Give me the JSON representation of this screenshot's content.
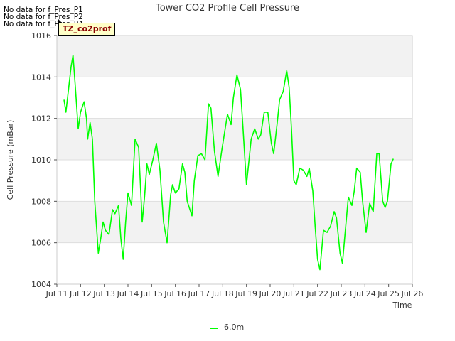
{
  "no_data_lines": [
    "No data for f_Pres_P1",
    "No data for f_Pres_P2",
    "No data for f_Pres_P4"
  ],
  "badge": "TZ_co2prof",
  "chart_data": {
    "type": "line",
    "title": "Tower CO2 Profile Cell Pressure",
    "xlabel": "Time",
    "ylabel": "Cell Pressure (mBar)",
    "x_ticks": [
      "Jul 11",
      "Jul 12",
      "Jul 13",
      "Jul 14",
      "Jul 15",
      "Jul 16",
      "Jul 17",
      "Jul 18",
      "Jul 19",
      "Jul 20",
      "Jul 21",
      "Jul 22",
      "Jul 23",
      "Jul 24",
      "Jul 25",
      "Jul 26"
    ],
    "xlim": [
      11,
      26
    ],
    "ylim": [
      1004,
      1016
    ],
    "y_ticks": [
      1004,
      1006,
      1008,
      1010,
      1012,
      1014,
      1016
    ],
    "series": [
      {
        "name": "6.0m",
        "color": "#00ff00",
        "x": [
          11.3,
          11.38,
          11.5,
          11.6,
          11.68,
          11.78,
          11.9,
          12.0,
          12.15,
          12.25,
          12.3,
          12.4,
          12.5,
          12.6,
          12.75,
          12.85,
          12.95,
          13.05,
          13.2,
          13.35,
          13.45,
          13.6,
          13.7,
          13.8,
          13.9,
          14.0,
          14.15,
          14.3,
          14.45,
          14.6,
          14.7,
          14.8,
          14.9,
          15.05,
          15.2,
          15.35,
          15.5,
          15.65,
          15.8,
          15.88,
          16.0,
          16.15,
          16.3,
          16.4,
          16.5,
          16.7,
          16.8,
          16.95,
          17.1,
          17.25,
          17.4,
          17.5,
          17.65,
          17.8,
          17.95,
          18.1,
          18.2,
          18.35,
          18.45,
          18.6,
          18.75,
          18.85,
          19.0,
          19.2,
          19.35,
          19.5,
          19.6,
          19.75,
          19.9,
          20.05,
          20.15,
          20.3,
          20.4,
          20.55,
          20.7,
          20.8,
          20.9,
          21.0,
          21.1,
          21.25,
          21.4,
          21.55,
          21.65,
          21.8,
          21.9,
          22.0,
          22.1,
          22.25,
          22.4,
          22.55,
          22.7,
          22.8,
          22.95,
          23.05,
          23.15,
          23.3,
          23.45,
          23.55,
          23.65,
          23.8,
          23.9,
          24.05,
          24.2,
          24.35,
          24.5,
          24.6,
          24.75,
          24.85,
          24.95,
          25.1,
          25.2
        ],
        "values": [
          1012.9,
          1012.3,
          1013.5,
          1014.5,
          1015.05,
          1013.5,
          1011.5,
          1012.3,
          1012.8,
          1012.0,
          1011.0,
          1011.8,
          1011.0,
          1008.0,
          1005.5,
          1006.2,
          1007.0,
          1006.6,
          1006.4,
          1007.6,
          1007.4,
          1007.8,
          1006.2,
          1005.2,
          1007.0,
          1008.4,
          1007.8,
          1011.0,
          1010.6,
          1007.0,
          1008.2,
          1009.8,
          1009.3,
          1010.0,
          1010.8,
          1009.5,
          1007.0,
          1006.0,
          1008.3,
          1008.8,
          1008.4,
          1008.6,
          1009.8,
          1009.4,
          1008.0,
          1007.3,
          1009.0,
          1010.2,
          1010.3,
          1010.0,
          1012.7,
          1012.5,
          1010.4,
          1009.2,
          1010.4,
          1011.5,
          1012.2,
          1011.7,
          1013.0,
          1014.1,
          1013.4,
          1011.6,
          1008.8,
          1011.0,
          1011.5,
          1011.0,
          1011.2,
          1012.3,
          1012.3,
          1010.8,
          1010.3,
          1011.8,
          1012.9,
          1013.3,
          1014.3,
          1013.5,
          1011.5,
          1009.0,
          1008.8,
          1009.6,
          1009.5,
          1009.2,
          1009.6,
          1008.5,
          1006.8,
          1005.2,
          1004.7,
          1006.6,
          1006.5,
          1006.8,
          1007.5,
          1007.2,
          1005.5,
          1005.0,
          1006.3,
          1008.2,
          1007.8,
          1008.5,
          1009.6,
          1009.4,
          1008.0,
          1006.5,
          1007.9,
          1007.5,
          1010.3,
          1010.3,
          1008.0,
          1007.7,
          1008.0,
          1009.8,
          1010.05
        ]
      }
    ]
  }
}
